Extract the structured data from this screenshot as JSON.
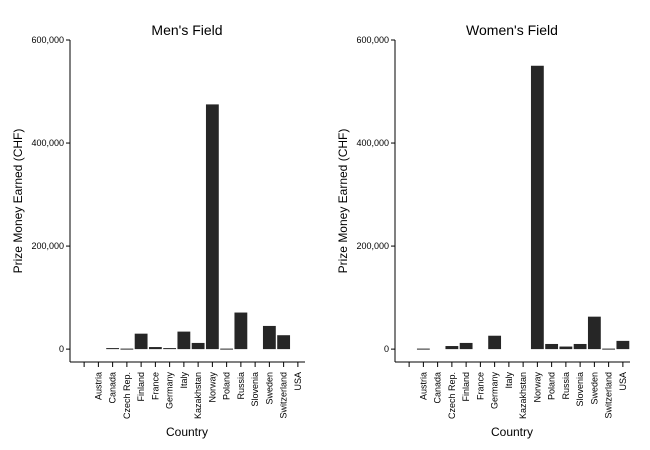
{
  "chart_data": [
    {
      "type": "bar",
      "title": "Men's Field",
      "xlabel": "Country",
      "ylabel": "Prize Money Earned (CHF)",
      "ylim": [
        -25000,
        600000
      ],
      "yticks": [
        0,
        200000,
        400000,
        600000
      ],
      "ytick_labels": [
        "0",
        "200,000",
        "400,000",
        "600,000"
      ],
      "categories": [
        "",
        "Austria",
        "Canada",
        "Czech Rep.",
        "Finland",
        "France",
        "Germany",
        "Italy",
        "Kazakhstan",
        "Norway",
        "Poland",
        "Russia",
        "Slovenia",
        "Sweden",
        "Switzerland",
        "USA"
      ],
      "values": [
        0,
        0,
        2000,
        1000,
        30000,
        4000,
        2000,
        34000,
        12000,
        475000,
        1000,
        71000,
        0,
        45000,
        27000,
        0
      ],
      "bar_color": "#262626",
      "grid": false
    },
    {
      "type": "bar",
      "title": "Women's Field",
      "xlabel": "Country",
      "ylabel": "Prize Money Earned (CHF)",
      "ylim": [
        -25000,
        600000
      ],
      "yticks": [
        0,
        200000,
        400000,
        600000
      ],
      "ytick_labels": [
        "0",
        "200,000",
        "400,000",
        "600,000"
      ],
      "categories": [
        "",
        "Austria",
        "Canada",
        "Czech Rep.",
        "Finland",
        "France",
        "Germany",
        "Italy",
        "Kazakhstan",
        "Norway",
        "Poland",
        "Russia",
        "Slovenia",
        "Sweden",
        "Switzerland",
        "USA"
      ],
      "values": [
        0,
        1000,
        0,
        6000,
        12000,
        0,
        26000,
        0,
        0,
        550000,
        10000,
        5000,
        10000,
        63000,
        1000,
        16000
      ],
      "bar_color": "#262626",
      "grid": false
    }
  ]
}
